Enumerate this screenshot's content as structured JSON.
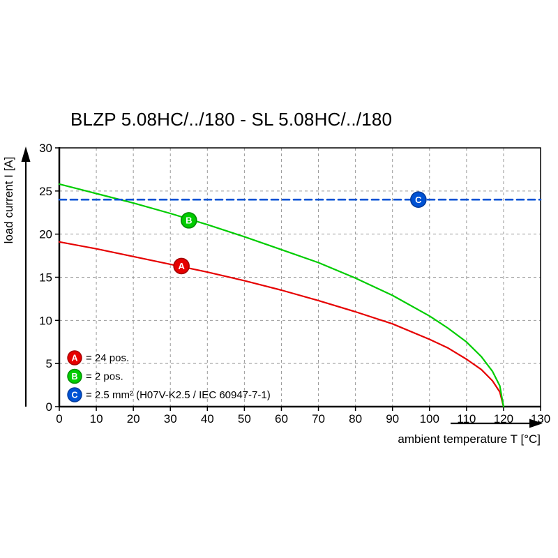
{
  "page": {
    "background": "#ffffff"
  },
  "chart_data": {
    "type": "line",
    "title": "BLZP 5.08HC/../180 - SL 5.08HC/../180",
    "xlabel": "ambient temperature T [°C]",
    "ylabel": "load current I [A]",
    "xlim": [
      0,
      130
    ],
    "ylim": [
      0,
      30
    ],
    "xticks": [
      0,
      10,
      20,
      30,
      40,
      50,
      60,
      70,
      80,
      90,
      100,
      110,
      120,
      130
    ],
    "yticks": [
      0,
      5,
      10,
      15,
      20,
      25,
      30
    ],
    "grid": true,
    "grid_color": "#999999",
    "axis_color": "#000000",
    "legend_position": "bottom-left-inside",
    "series": [
      {
        "id": "A",
        "legend_label": "= 24 pos.",
        "color": "#e60000",
        "ring_color": "#a30000",
        "line_style": "solid",
        "marker_at": [
          33,
          16.3
        ],
        "points": [
          [
            0,
            19.1
          ],
          [
            10,
            18.3
          ],
          [
            20,
            17.4
          ],
          [
            30,
            16.5
          ],
          [
            40,
            15.6
          ],
          [
            50,
            14.6
          ],
          [
            60,
            13.5
          ],
          [
            70,
            12.3
          ],
          [
            80,
            11.0
          ],
          [
            90,
            9.6
          ],
          [
            100,
            7.8
          ],
          [
            105,
            6.8
          ],
          [
            110,
            5.5
          ],
          [
            114,
            4.3
          ],
          [
            117,
            3.0
          ],
          [
            119,
            1.7
          ],
          [
            120,
            0
          ]
        ]
      },
      {
        "id": "B",
        "legend_label": "= 2 pos.",
        "color": "#00cc00",
        "ring_color": "#008a00",
        "line_style": "solid",
        "marker_at": [
          35,
          21.6
        ],
        "points": [
          [
            0,
            25.8
          ],
          [
            10,
            24.7
          ],
          [
            20,
            23.6
          ],
          [
            30,
            22.4
          ],
          [
            40,
            21.1
          ],
          [
            50,
            19.7
          ],
          [
            60,
            18.2
          ],
          [
            70,
            16.7
          ],
          [
            80,
            14.9
          ],
          [
            90,
            12.9
          ],
          [
            100,
            10.5
          ],
          [
            105,
            9.1
          ],
          [
            110,
            7.5
          ],
          [
            114,
            5.8
          ],
          [
            117,
            4.1
          ],
          [
            119,
            2.4
          ],
          [
            120,
            0
          ]
        ]
      },
      {
        "id": "C",
        "legend_label": "= 2.5 mm² (H07V-K2.5 / IEC 60947-7-1)",
        "color": "#0052d4",
        "ring_color": "#003a9b",
        "line_style": "dashed",
        "marker_at": [
          97,
          24
        ],
        "points": [
          [
            0,
            24
          ],
          [
            130,
            24
          ]
        ]
      }
    ]
  }
}
